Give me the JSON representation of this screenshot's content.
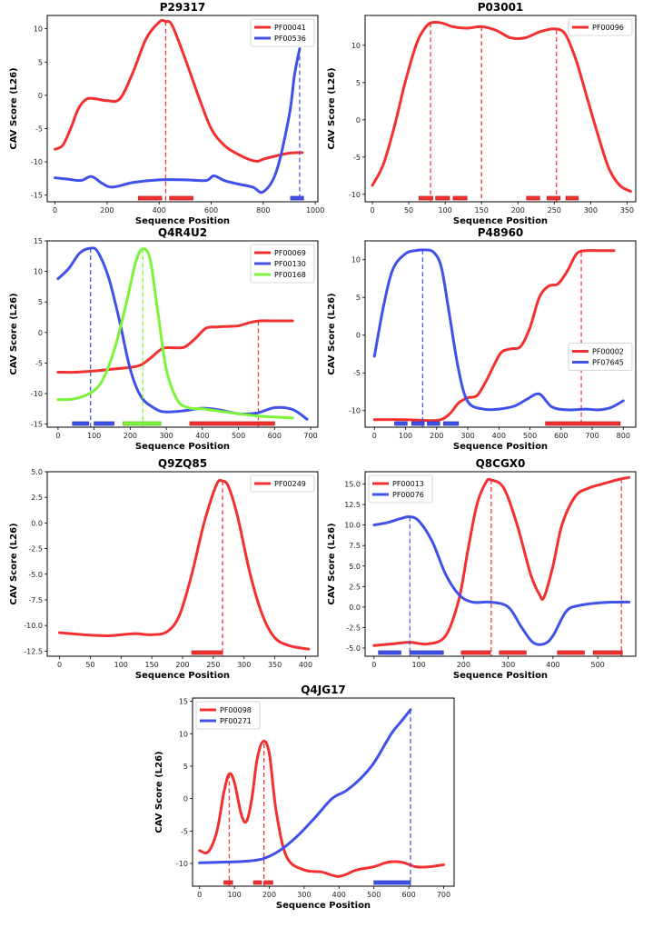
{
  "chart_data": [
    {
      "type": "line",
      "title": "P29317",
      "xlabel": "Sequence Position",
      "ylabel": "CAV Score (L26)",
      "xlim": [
        -30,
        1010
      ],
      "ylim": [
        -16,
        12
      ],
      "xticks": [
        0,
        200,
        400,
        600,
        800,
        1000
      ],
      "yticks": [
        -15,
        -10,
        -5,
        0,
        5,
        10
      ],
      "legend": "top-right",
      "series": [
        {
          "name": "PF00041",
          "color": "#f23030",
          "x": [
            0,
            30,
            60,
            90,
            120,
            150,
            200,
            250,
            300,
            350,
            400,
            425,
            450,
            500,
            550,
            600,
            650,
            700,
            750,
            780,
            800,
            850,
            900,
            950
          ],
          "y": [
            -8.1,
            -7.5,
            -5,
            -2,
            -0.6,
            -0.5,
            -0.8,
            -0.5,
            3.5,
            8.5,
            11,
            11.1,
            10.5,
            5.5,
            0,
            -5,
            -7.5,
            -8.8,
            -9.7,
            -9.9,
            -9.6,
            -9.1,
            -8.7,
            -8.6
          ],
          "peaks": [
            425
          ],
          "domains": [
            [
              320,
              410
            ],
            [
              440,
              530
            ]
          ]
        },
        {
          "name": "PF00536",
          "color": "#3f51e8",
          "x": [
            0,
            50,
            100,
            140,
            180,
            220,
            300,
            400,
            500,
            580,
            610,
            650,
            700,
            760,
            800,
            850,
            900,
            920,
            940
          ],
          "y": [
            -12.4,
            -12.6,
            -12.8,
            -12.2,
            -13.2,
            -13.8,
            -13.1,
            -12.7,
            -12.7,
            -12.8,
            -12.1,
            -12.8,
            -13.3,
            -13.8,
            -14.5,
            -11.5,
            -3,
            3,
            7
          ],
          "peaks": [
            940
          ],
          "domains": [
            [
              905,
              955
            ]
          ]
        }
      ]
    },
    {
      "type": "line",
      "title": "P03001",
      "xlabel": "Sequence Position",
      "ylabel": "CAV Score (L26)",
      "xlim": [
        -10,
        362
      ],
      "ylim": [
        -11,
        14
      ],
      "xticks": [
        0,
        50,
        100,
        150,
        200,
        250,
        300,
        350
      ],
      "yticks": [
        -10,
        -5,
        0,
        5,
        10
      ],
      "legend": "top-right",
      "series": [
        {
          "name": "PF00096",
          "color": "#f23030",
          "x": [
            0,
            15,
            30,
            45,
            60,
            70,
            80,
            95,
            110,
            130,
            150,
            170,
            190,
            210,
            230,
            250,
            265,
            280,
            295,
            310,
            325,
            340,
            355
          ],
          "y": [
            -8.8,
            -6,
            -1,
            5,
            10,
            12,
            13,
            13,
            12.5,
            12.3,
            12.5,
            12,
            11,
            11,
            11.8,
            12.2,
            11.5,
            8,
            3,
            -2,
            -6.5,
            -8.8,
            -9.6
          ],
          "peaks": [
            80,
            150,
            253
          ],
          "domains": [
            [
              64,
              83
            ],
            [
              87,
              106
            ],
            [
              111,
              130
            ],
            [
              212,
              230
            ],
            [
              240,
              258
            ],
            [
              266,
              283
            ]
          ]
        }
      ]
    },
    {
      "type": "line",
      "title": "Q4R4U2",
      "xlabel": "Sequence Position",
      "ylabel": "CAV Score (L26)",
      "xlim": [
        -30,
        720
      ],
      "ylim": [
        -15.5,
        15
      ],
      "xticks": [
        0,
        100,
        200,
        300,
        400,
        500,
        600,
        700
      ],
      "yticks": [
        -15,
        -10,
        -5,
        0,
        5,
        10,
        15
      ],
      "legend": "top-right",
      "series": [
        {
          "name": "PF00069",
          "color": "#f23030",
          "x": [
            0,
            50,
            100,
            150,
            200,
            230,
            260,
            290,
            320,
            350,
            380,
            410,
            440,
            470,
            500,
            530,
            560,
            600,
            650
          ],
          "y": [
            -6.5,
            -6.5,
            -6.3,
            -6,
            -5.7,
            -5.3,
            -4,
            -2.6,
            -2.5,
            -2.4,
            -1,
            0.7,
            0.9,
            1,
            1.1,
            1.6,
            1.9,
            1.9,
            1.9
          ],
          "peaks": [
            555
          ],
          "domains": [
            [
              365,
              600
            ]
          ]
        },
        {
          "name": "PF00130",
          "color": "#3f51e8",
          "x": [
            0,
            30,
            60,
            90,
            110,
            140,
            170,
            200,
            230,
            270,
            300,
            350,
            400,
            450,
            500,
            550,
            600,
            650,
            690
          ],
          "y": [
            8.8,
            10.5,
            13,
            13.8,
            13.2,
            9,
            2,
            -6,
            -10.5,
            -12.5,
            -13,
            -12.8,
            -12.4,
            -12.7,
            -13.3,
            -13.2,
            -12.3,
            -12.6,
            -14.2
          ],
          "peaks": [
            90
          ],
          "domains": [
            [
              40,
              85
            ],
            [
              100,
              155
            ]
          ]
        },
        {
          "name": "PF00168",
          "color": "#7cf43a",
          "x": [
            0,
            50,
            100,
            130,
            160,
            190,
            215,
            235,
            255,
            275,
            300,
            330,
            360,
            400,
            450,
            500,
            560,
            620,
            650
          ],
          "y": [
            -11,
            -10.8,
            -9.5,
            -7,
            -2,
            5,
            11.5,
            13.7,
            12,
            4,
            -6,
            -11,
            -12.3,
            -12.5,
            -12.9,
            -13.3,
            -13.7,
            -13.9,
            -14
          ],
          "peaks": [
            235
          ],
          "domains": [
            [
              180,
              285
            ]
          ]
        }
      ]
    },
    {
      "type": "line",
      "title": "P48960",
      "xlabel": "Sequence Position",
      "ylabel": "CAV Score (L26)",
      "xlim": [
        -30,
        840
      ],
      "ylim": [
        -12.2,
        12.5
      ],
      "xticks": [
        0,
        100,
        200,
        300,
        400,
        500,
        600,
        700,
        800
      ],
      "yticks": [
        -10,
        -5,
        0,
        5,
        10
      ],
      "legend": "center-right",
      "series": [
        {
          "name": "PF00002",
          "color": "#f23030",
          "x": [
            0,
            100,
            200,
            240,
            270,
            300,
            330,
            360,
            390,
            410,
            440,
            470,
            500,
            530,
            560,
            590,
            620,
            650,
            680,
            720,
            770
          ],
          "y": [
            -11.2,
            -11.2,
            -11.3,
            -10.5,
            -9,
            -8.3,
            -8,
            -6,
            -3.5,
            -2.2,
            -1.8,
            -1.5,
            1,
            5,
            6.5,
            6.8,
            8.5,
            10.8,
            11.2,
            11.2,
            11.2
          ],
          "peaks": [
            665
          ],
          "domains": [
            [
              550,
              790
            ]
          ]
        },
        {
          "name": "PF07645",
          "color": "#3f51e8",
          "x": [
            0,
            30,
            60,
            100,
            130,
            160,
            190,
            215,
            240,
            270,
            300,
            350,
            400,
            450,
            490,
            530,
            570,
            620,
            680,
            720,
            760,
            800
          ],
          "y": [
            -2.8,
            4,
            8.8,
            10.8,
            11.2,
            11.3,
            11,
            9,
            3,
            -4.5,
            -8.8,
            -9.8,
            -9.8,
            -9.4,
            -8.5,
            -7.8,
            -9.5,
            -9.9,
            -9.8,
            -9.9,
            -9.6,
            -8.7
          ],
          "peaks": [
            155
          ],
          "domains": [
            [
              65,
              105
            ],
            [
              120,
              160
            ],
            [
              170,
              210
            ],
            [
              222,
              270
            ]
          ]
        }
      ]
    },
    {
      "type": "line",
      "title": "Q9ZQ85",
      "xlabel": "Sequence Position",
      "ylabel": "CAV Score (L26)",
      "xlim": [
        -20,
        420
      ],
      "ylim": [
        -13,
        5
      ],
      "xticks": [
        0,
        50,
        100,
        150,
        200,
        250,
        300,
        350,
        400
      ],
      "yticks": [
        -12.5,
        -10.0,
        -7.5,
        -5.0,
        -2.5,
        0.0,
        2.5,
        5.0
      ],
      "ytickfmt": "1dp",
      "legend": "top-right",
      "series": [
        {
          "name": "PF00249",
          "color": "#f23030",
          "x": [
            0,
            40,
            80,
            120,
            150,
            175,
            195,
            215,
            235,
            255,
            265,
            275,
            290,
            310,
            330,
            350,
            375,
            405
          ],
          "y": [
            -10.7,
            -10.9,
            -11,
            -10.8,
            -10.9,
            -10.6,
            -9,
            -5,
            0,
            3.7,
            4.1,
            3.5,
            0.5,
            -5,
            -9,
            -11.2,
            -12,
            -12.3
          ],
          "peaks": [
            265
          ],
          "domains": [
            [
              215,
              265
            ]
          ]
        }
      ]
    },
    {
      "type": "line",
      "title": "Q8CGX0",
      "xlabel": "Sequence Position",
      "ylabel": "CAV Score (L26)",
      "xlim": [
        -20,
        585
      ],
      "ylim": [
        -6,
        16.5
      ],
      "xticks": [
        0,
        100,
        200,
        300,
        400,
        500
      ],
      "yticks": [
        -5.0,
        -2.5,
        0.0,
        2.5,
        5.0,
        7.5,
        10.0,
        12.5,
        15.0
      ],
      "ytickfmt": "1dp",
      "legend": "top-left",
      "series": [
        {
          "name": "PF00013",
          "color": "#f23030",
          "x": [
            0,
            40,
            80,
            120,
            160,
            190,
            210,
            230,
            250,
            262,
            290,
            320,
            350,
            370,
            380,
            400,
            420,
            450,
            480,
            510,
            550,
            570
          ],
          "y": [
            -4.7,
            -4.5,
            -4.3,
            -4.5,
            -3.5,
            1,
            7,
            12.5,
            15.2,
            15.5,
            14.5,
            10,
            4,
            1.5,
            1.2,
            5,
            10,
            13.5,
            14.5,
            15,
            15.6,
            15.8
          ],
          "peaks": [
            262,
            553
          ],
          "domains": [
            [
              195,
              260
            ],
            [
              280,
              340
            ],
            [
              410,
              470
            ],
            [
              490,
              555
            ]
          ]
        },
        {
          "name": "PF00076",
          "color": "#3f51e8",
          "x": [
            0,
            30,
            60,
            80,
            100,
            130,
            160,
            190,
            220,
            260,
            300,
            330,
            355,
            380,
            400,
            430,
            460,
            500,
            540,
            570
          ],
          "y": [
            10,
            10.3,
            10.8,
            11,
            10.5,
            8,
            4,
            1.5,
            0.6,
            0.6,
            0,
            -2.5,
            -4.3,
            -4.5,
            -3.5,
            -0.5,
            0.2,
            0.5,
            0.6,
            0.6
          ],
          "peaks": [
            80
          ],
          "domains": [
            [
              10,
              60
            ],
            [
              80,
              155
            ]
          ]
        }
      ]
    },
    {
      "type": "line",
      "title": "Q4JG17",
      "xlabel": "Sequence Position",
      "ylabel": "CAV Score (L26)",
      "xlim": [
        -20,
        730
      ],
      "ylim": [
        -13.5,
        15.5
      ],
      "xticks": [
        0,
        100,
        200,
        300,
        400,
        500,
        600,
        700
      ],
      "yticks": [
        -10,
        -5,
        0,
        5,
        10,
        15
      ],
      "legend": "top-left",
      "series": [
        {
          "name": "PF00098",
          "color": "#f23030",
          "x": [
            0,
            25,
            50,
            70,
            85,
            100,
            120,
            135,
            150,
            165,
            182,
            200,
            220,
            250,
            300,
            350,
            400,
            450,
            500,
            540,
            580,
            620,
            660,
            700
          ],
          "y": [
            -8,
            -8.2,
            -5,
            1,
            3.8,
            2.5,
            -2.5,
            -3.5,
            0,
            6,
            8.8,
            7,
            -2,
            -9,
            -11,
            -11.3,
            -12,
            -11,
            -10.5,
            -9.8,
            -9.8,
            -10.5,
            -10.5,
            -10.2
          ],
          "peaks": [
            85,
            185
          ],
          "domains": [
            [
              70,
              95
            ],
            [
              155,
              178
            ],
            [
              185,
              210
            ]
          ]
        },
        {
          "name": "PF00271",
          "color": "#3f51e8",
          "x": [
            0,
            60,
            120,
            180,
            230,
            280,
            330,
            380,
            420,
            460,
            500,
            550,
            580,
            605
          ],
          "y": [
            -9.9,
            -9.8,
            -9.7,
            -9.3,
            -8,
            -5.8,
            -3,
            0,
            1.2,
            3,
            5.5,
            10,
            12,
            13.7
          ],
          "peaks": [
            605
          ],
          "domains": [
            [
              500,
              605
            ]
          ]
        }
      ]
    }
  ]
}
